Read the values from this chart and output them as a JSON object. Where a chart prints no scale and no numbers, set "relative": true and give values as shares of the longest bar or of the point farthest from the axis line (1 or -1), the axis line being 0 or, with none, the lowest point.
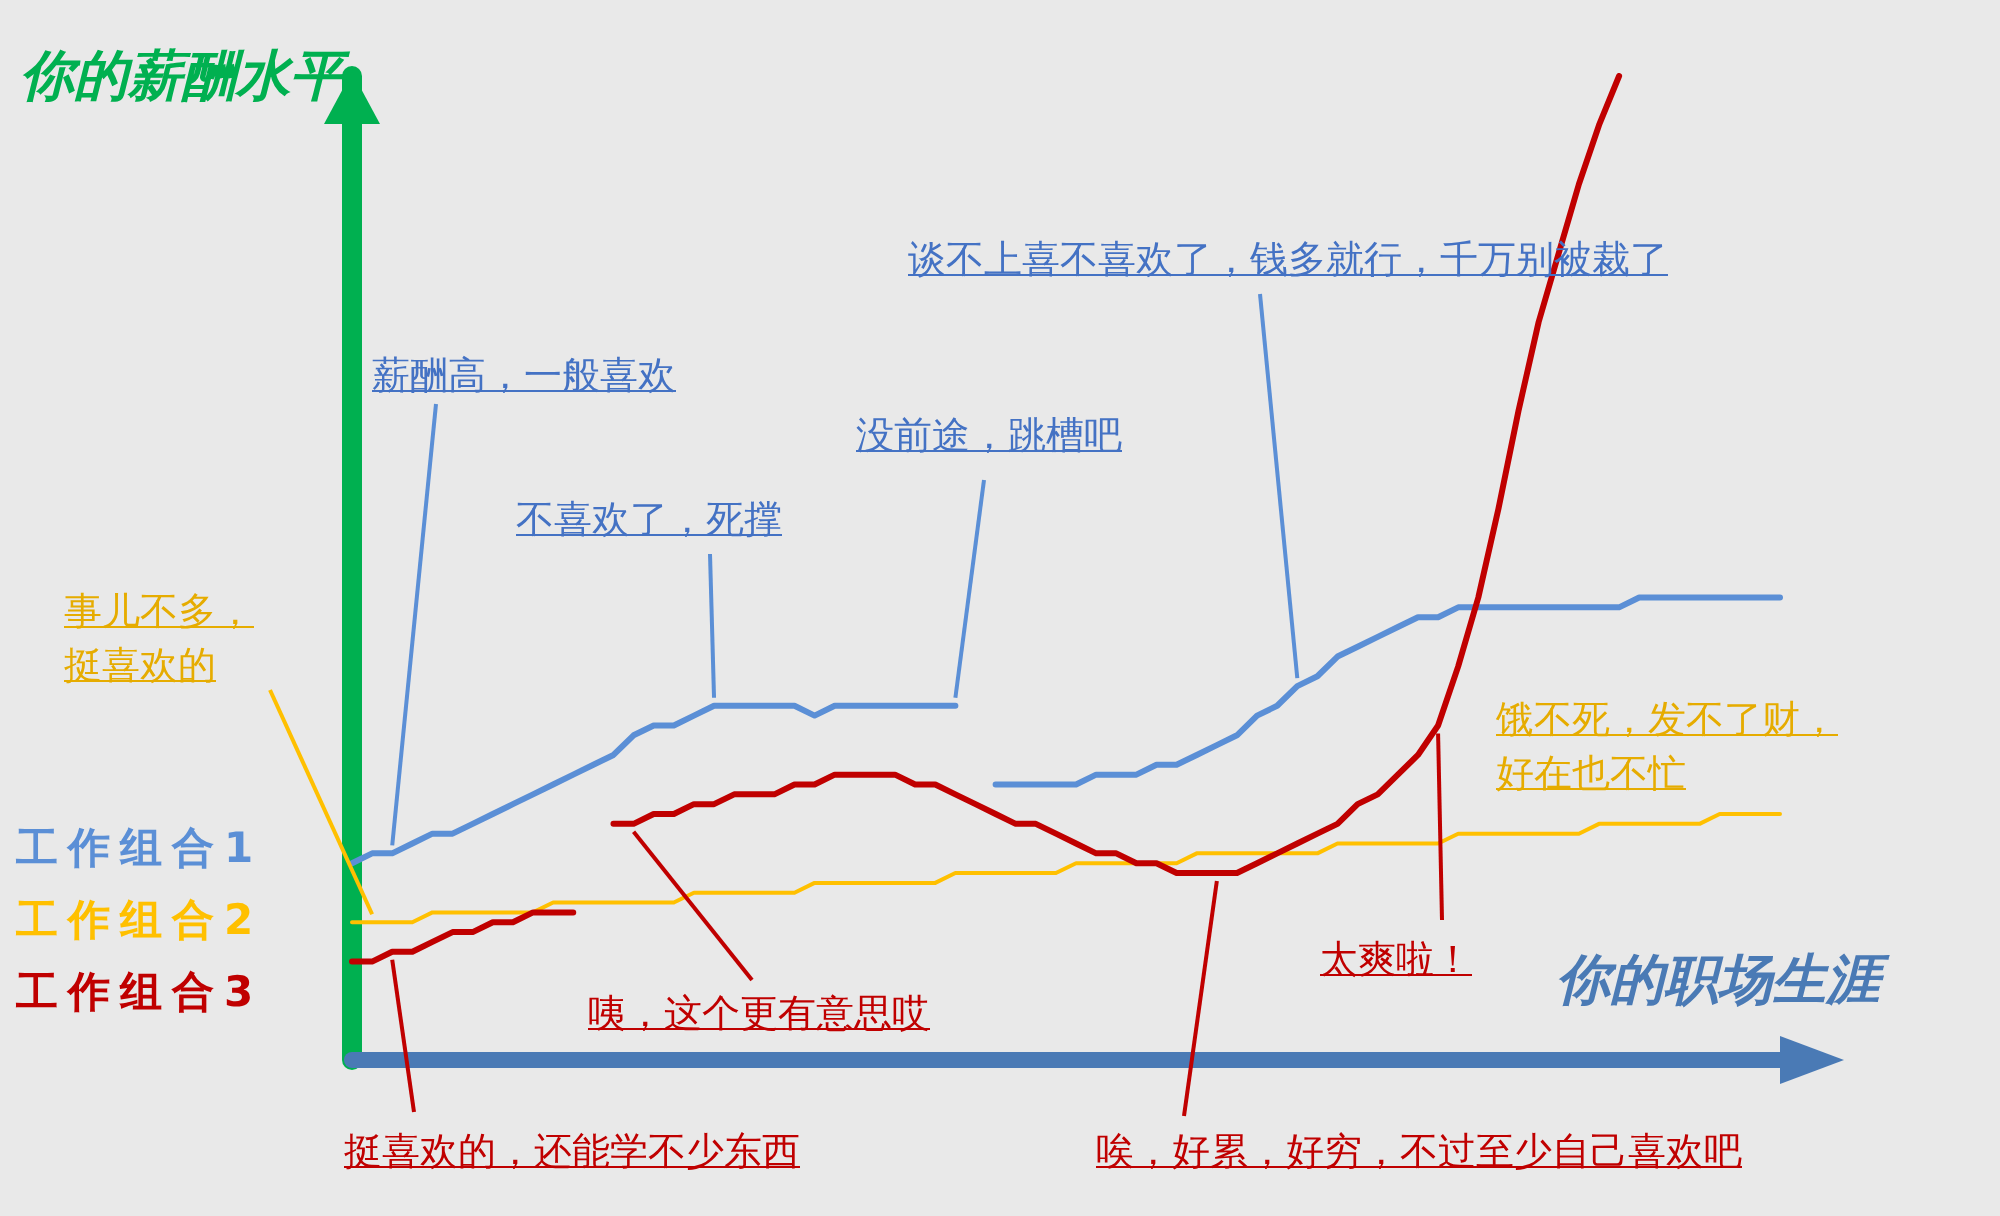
{
  "chart_data": {
    "type": "line",
    "xlabel": "你的职场生涯",
    "ylabel": "你的薪酬水平",
    "relative": true,
    "grid": false,
    "legend": false,
    "marker": "none",
    "categories": [
      null,
      null,
      null,
      null,
      null,
      null,
      null,
      null,
      null,
      null,
      null,
      null,
      null,
      null,
      null,
      null,
      null,
      null,
      null,
      null,
      null,
      null,
      null,
      null,
      null,
      null,
      null,
      null,
      null,
      null,
      null,
      null,
      null,
      null,
      null,
      null,
      null,
      null,
      null,
      null,
      null,
      null,
      null,
      null,
      null,
      null,
      null,
      null,
      null,
      null,
      null,
      null,
      null,
      null,
      null,
      null,
      null,
      null,
      null,
      null,
      null,
      null,
      null,
      null,
      null,
      null,
      null,
      null,
      null,
      null,
      null,
      null
    ],
    "series": [
      {
        "name": "工作组合1",
        "color": "#5b8fd6",
        "values": [
          0.2,
          0.21,
          0.21,
          0.22,
          0.23,
          0.23,
          0.24,
          0.25,
          0.26,
          0.27,
          0.28,
          0.29,
          0.3,
          0.31,
          0.33,
          0.34,
          0.34,
          0.35,
          0.36,
          0.36,
          0.36,
          0.36,
          0.36,
          0.35,
          0.36,
          0.36,
          0.36,
          0.36,
          0.36,
          0.36,
          0.36,
          null,
          0.28,
          0.28,
          0.28,
          0.28,
          0.28,
          0.29,
          0.29,
          0.29,
          0.3,
          0.3,
          0.31,
          0.32,
          0.33,
          0.35,
          0.36,
          0.38,
          0.39,
          0.41,
          0.42,
          0.43,
          0.44,
          0.45,
          0.45,
          0.46,
          0.46,
          0.46,
          0.46,
          0.46,
          0.46,
          0.46,
          0.46,
          0.46,
          0.47,
          0.47,
          0.47,
          0.47,
          0.47,
          0.47,
          0.47,
          0.47
        ]
      },
      {
        "name": "工作组合2",
        "color": "#ffc000",
        "values": [
          0.14,
          0.14,
          0.14,
          0.14,
          0.15,
          0.15,
          0.15,
          0.15,
          0.15,
          0.15,
          0.16,
          0.16,
          0.16,
          0.16,
          0.16,
          0.16,
          0.16,
          0.17,
          0.17,
          0.17,
          0.17,
          0.17,
          0.17,
          0.18,
          0.18,
          0.18,
          0.18,
          0.18,
          0.18,
          0.18,
          0.19,
          0.19,
          0.19,
          0.19,
          0.19,
          0.19,
          0.2,
          0.2,
          0.2,
          0.2,
          0.2,
          0.2,
          0.21,
          0.21,
          0.21,
          0.21,
          0.21,
          0.21,
          0.21,
          0.22,
          0.22,
          0.22,
          0.22,
          0.22,
          0.22,
          0.23,
          0.23,
          0.23,
          0.23,
          0.23,
          0.23,
          0.23,
          0.24,
          0.24,
          0.24,
          0.24,
          0.24,
          0.24,
          0.25,
          0.25,
          0.25,
          0.25
        ]
      },
      {
        "name": "工作组合3",
        "color": "#c00000",
        "values": [
          0.1,
          0.1,
          0.11,
          0.11,
          0.12,
          0.13,
          0.13,
          0.14,
          0.14,
          0.15,
          0.15,
          0.15,
          null,
          0.24,
          0.24,
          0.25,
          0.25,
          0.26,
          0.26,
          0.27,
          0.27,
          0.27,
          0.28,
          0.28,
          0.29,
          0.29,
          0.29,
          0.29,
          0.28,
          0.28,
          0.27,
          0.26,
          0.25,
          0.24,
          0.24,
          0.23,
          0.22,
          0.21,
          0.21,
          0.2,
          0.2,
          0.19,
          0.19,
          0.19,
          0.19,
          0.2,
          0.21,
          0.22,
          0.23,
          0.24,
          0.26,
          0.27,
          0.29,
          0.31,
          0.34,
          0.4,
          0.47,
          0.56,
          0.66,
          0.75,
          0.82,
          0.89,
          0.95,
          1,
          null,
          null,
          null,
          null,
          null,
          null,
          null,
          null
        ]
      }
    ],
    "annotations": [
      "薪酬高，一般喜欢",
      "不喜欢了，死撑",
      "没前途，跳槽吧",
      "谈不上喜不喜欢了，钱多就行，千万别被裁了",
      "事儿不多，挺喜欢的",
      "饿不死，发不了财，好在也不忙",
      "咦，这个更有意思哎",
      "挺喜欢的，还能学不少东西",
      "唉，好累，好穷，不过至少自己喜欢吧",
      "太爽啦！"
    ]
  }
}
